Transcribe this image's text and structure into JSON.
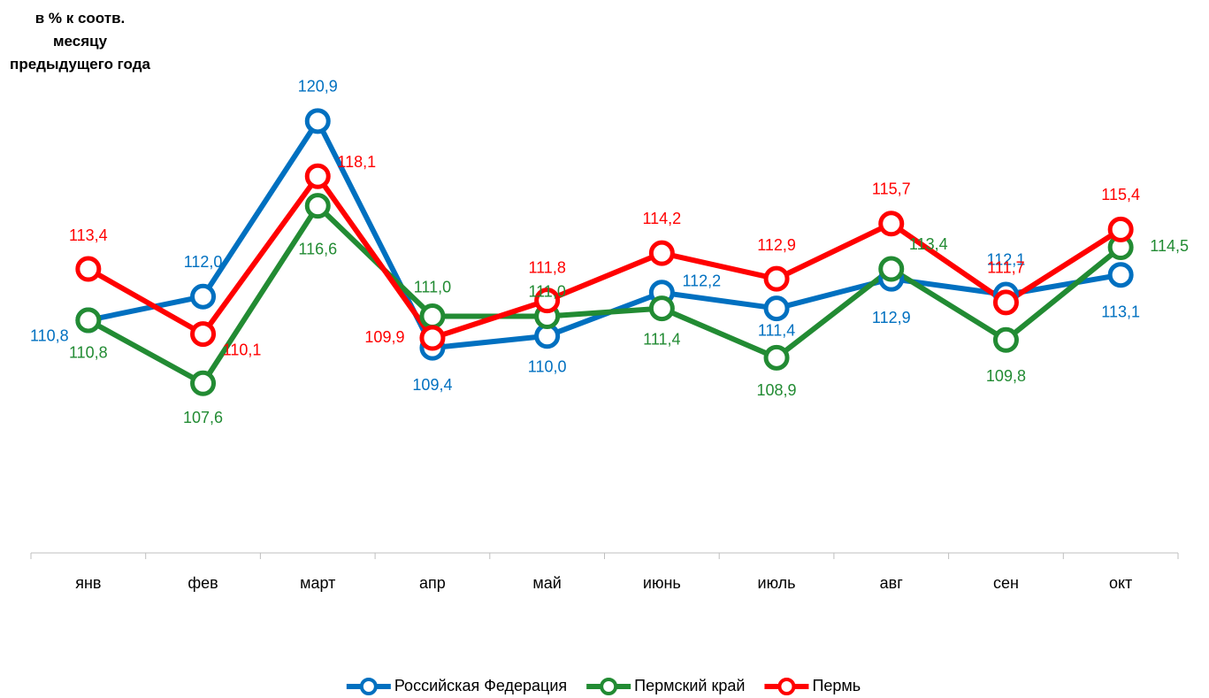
{
  "chart_data": {
    "type": "line",
    "title": "в % к соотв. месяцу предыдущего года",
    "categories": [
      "янв",
      "фев",
      "март",
      "апр",
      "май",
      "июнь",
      "июль",
      "авг",
      "сен",
      "окт"
    ],
    "ylim": [
      99,
      123
    ],
    "legend": "bottom",
    "series": [
      {
        "name": "Российская Федерация",
        "color": "#0070c0",
        "values": [
          110.8,
          112.0,
          120.9,
          109.4,
          110.0,
          112.2,
          111.4,
          112.9,
          112.1,
          113.1
        ],
        "value_labels": [
          "110,8",
          "112,0",
          "120,9",
          "109,4",
          "110,0",
          "112,2",
          "111,4",
          "112,9",
          "112,1",
          "113,1"
        ]
      },
      {
        "name": "Пермский край",
        "color": "#228b33",
        "values": [
          110.8,
          107.6,
          116.6,
          111.0,
          111.0,
          111.4,
          108.9,
          113.4,
          109.8,
          114.5
        ],
        "value_labels": [
          "110,8",
          "107,6",
          "116,6",
          "111,0",
          "111,0",
          "111,4",
          "108,9",
          "113,4",
          "109,8",
          "114,5"
        ]
      },
      {
        "name": "Пермь",
        "color": "#ff0000",
        "values": [
          113.4,
          110.1,
          118.1,
          109.9,
          111.8,
          114.2,
          112.9,
          115.7,
          111.7,
          115.4
        ],
        "value_labels": [
          "113,4",
          "110,1",
          "118,1",
          "109,9",
          "111,8",
          "114,2",
          "112,9",
          "115,7",
          "111,7",
          "115,4"
        ]
      }
    ]
  }
}
